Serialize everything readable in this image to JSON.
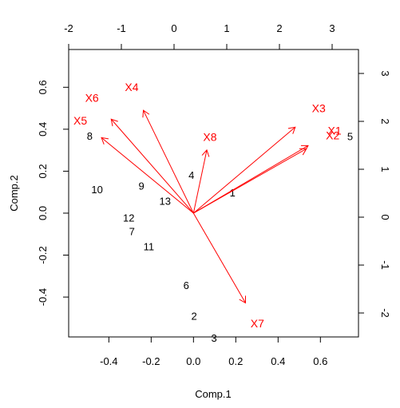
{
  "chart_data": {
    "type": "scatter",
    "subtype": "biplot",
    "title": "",
    "xlabel": "Comp.1",
    "ylabel": "Comp.2",
    "xlim": [
      -0.59,
      0.78
    ],
    "ylim": [
      -0.59,
      0.78
    ],
    "top_xlim": [
      -2.0,
      3.5
    ],
    "right_ylim": [
      -2.5,
      3.5
    ],
    "bottom_ticks": [
      "-0.4",
      "-0.2",
      "0.0",
      "0.2",
      "0.4",
      "0.6"
    ],
    "left_ticks": [
      "-0.4",
      "-0.2",
      "0.0",
      "0.2",
      "0.4",
      "0.6"
    ],
    "top_ticks": [
      "-2",
      "-1",
      "0",
      "1",
      "2",
      "3"
    ],
    "right_ticks": [
      "-2",
      "-1",
      "0",
      "1",
      "2",
      "3"
    ],
    "grid": false,
    "colors": {
      "observations": "#000000",
      "loadings": "#ff0000",
      "axes": "#000000"
    },
    "observations": [
      {
        "label": "1",
        "x": 1.11,
        "y": 0.52
      },
      {
        "label": "2",
        "x": 0.38,
        "y": -2.06
      },
      {
        "label": "3",
        "x": 0.76,
        "y": -2.52
      },
      {
        "label": "4",
        "x": 0.33,
        "y": 0.88
      },
      {
        "label": "5",
        "x": 3.34,
        "y": 1.69
      },
      {
        "label": "6",
        "x": 0.23,
        "y": -1.42
      },
      {
        "label": "7",
        "x": -0.8,
        "y": -0.29
      },
      {
        "label": "8",
        "x": -1.6,
        "y": 1.7
      },
      {
        "label": "9",
        "x": -0.62,
        "y": 0.66
      },
      {
        "label": "10",
        "x": -1.46,
        "y": 0.58
      },
      {
        "label": "11",
        "x": -0.48,
        "y": -0.61
      },
      {
        "label": "12",
        "x": -0.86,
        "y": -0.01
      },
      {
        "label": "13",
        "x": -0.17,
        "y": 0.34
      }
    ],
    "loadings": [
      {
        "label": "X1",
        "x": 0.542,
        "y": 0.322,
        "lx": 0.667,
        "ly": 0.393
      },
      {
        "label": "X2",
        "x": 0.534,
        "y": 0.307,
        "lx": 0.658,
        "ly": 0.371
      },
      {
        "label": "X3",
        "x": 0.481,
        "y": 0.41,
        "lx": 0.592,
        "ly": 0.5
      },
      {
        "label": "X4",
        "x": -0.237,
        "y": 0.49,
        "lx": -0.292,
        "ly": 0.602
      },
      {
        "label": "X5",
        "x": -0.435,
        "y": 0.36,
        "lx": -0.535,
        "ly": 0.442
      },
      {
        "label": "X6",
        "x": -0.389,
        "y": 0.448,
        "lx": -0.48,
        "ly": 0.549
      },
      {
        "label": "X7",
        "x": 0.246,
        "y": -0.428,
        "lx": 0.302,
        "ly": -0.526
      },
      {
        "label": "X8",
        "x": 0.063,
        "y": 0.301,
        "lx": 0.078,
        "ly": 0.363
      }
    ]
  }
}
